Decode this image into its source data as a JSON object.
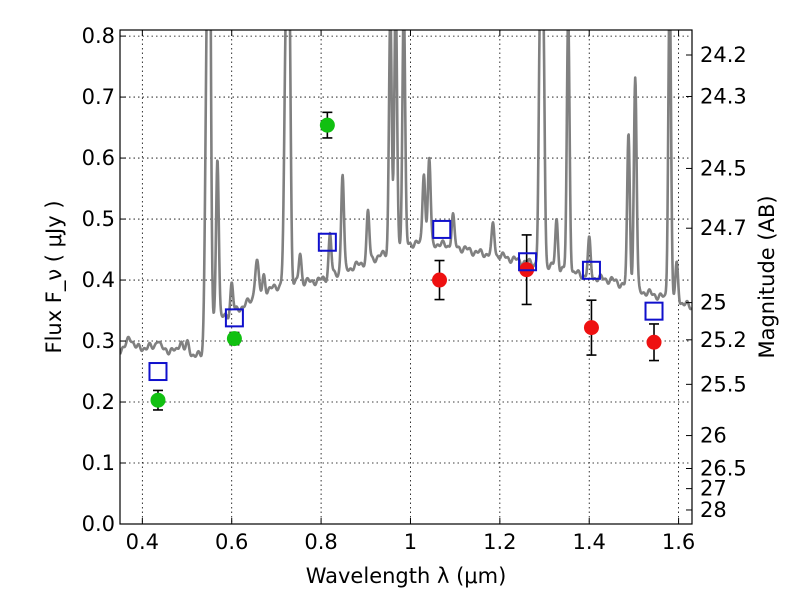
{
  "chart_data": {
    "type": "scatter",
    "title": "",
    "xlabel": "Wavelength  λ (μm)",
    "ylabel_left": "Flux  F_ν  ( μJy )",
    "ylabel_right": "Magnitude (AB)",
    "xlim": [
      0.35,
      1.63
    ],
    "ylim": [
      0.0,
      0.81
    ],
    "grid": true,
    "x_ticks": [
      0.4,
      0.6,
      0.8,
      1.0,
      1.2,
      1.4,
      1.6
    ],
    "x_tick_labels": [
      "0.4",
      "0.6",
      "0.8",
      "1",
      "1.2",
      "1.4",
      "1.6"
    ],
    "y_ticks": [
      0.0,
      0.1,
      0.2,
      0.3,
      0.4,
      0.5,
      0.6,
      0.7,
      0.8
    ],
    "y_tick_labels": [
      "0.0",
      "0.1",
      "0.2",
      "0.3",
      "0.4",
      "0.5",
      "0.6",
      "0.7",
      "0.8"
    ],
    "right_ticks": [
      {
        "label": "24.2",
        "flux": 0.769
      },
      {
        "label": "24.3",
        "flux": 0.701
      },
      {
        "label": "24.5",
        "flux": 0.583
      },
      {
        "label": "24.7",
        "flux": 0.485
      },
      {
        "label": "25",
        "flux": 0.363
      },
      {
        "label": "25.2",
        "flux": 0.302
      },
      {
        "label": "25.5",
        "flux": 0.229
      },
      {
        "label": "26",
        "flux": 0.145
      },
      {
        "label": "26.5",
        "flux": 0.091
      },
      {
        "label": "27",
        "flux": 0.058
      },
      {
        "label": "28",
        "flux": 0.023
      }
    ],
    "series": [
      {
        "name": "Photometry (green)",
        "marker": "circle",
        "color": "#11c011",
        "points": [
          {
            "x": 0.435,
            "y": 0.203,
            "err": 0.016
          },
          {
            "x": 0.606,
            "y": 0.304,
            "err": 0.01
          },
          {
            "x": 0.814,
            "y": 0.654,
            "err": 0.021
          }
        ]
      },
      {
        "name": "Photometry (red)",
        "marker": "circle",
        "color": "#ee1111",
        "points": [
          {
            "x": 1.065,
            "y": 0.4,
            "err": 0.032
          },
          {
            "x": 1.26,
            "y": 0.417,
            "err": 0.057
          },
          {
            "x": 1.405,
            "y": 0.322,
            "err": 0.045
          },
          {
            "x": 1.545,
            "y": 0.298,
            "err": 0.03
          }
        ]
      },
      {
        "name": "Model synthetic photometry",
        "marker": "open-square",
        "color": "#1010cc",
        "points": [
          {
            "x": 0.435,
            "y": 0.25
          },
          {
            "x": 0.606,
            "y": 0.338
          },
          {
            "x": 0.814,
            "y": 0.462
          },
          {
            "x": 1.07,
            "y": 0.483
          },
          {
            "x": 1.262,
            "y": 0.43
          },
          {
            "x": 1.405,
            "y": 0.416
          },
          {
            "x": 1.545,
            "y": 0.349
          }
        ]
      }
    ],
    "model_spectrum": {
      "name": "Best-fit SED",
      "color": "#808080",
      "continuum": [
        [
          0.35,
          0.285
        ],
        [
          0.38,
          0.288
        ],
        [
          0.42,
          0.29
        ],
        [
          0.46,
          0.285
        ],
        [
          0.5,
          0.28
        ],
        [
          0.535,
          0.275
        ],
        [
          0.545,
          0.265
        ],
        [
          0.552,
          0.33
        ],
        [
          0.6,
          0.345
        ],
        [
          0.65,
          0.37
        ],
        [
          0.7,
          0.39
        ],
        [
          0.75,
          0.395
        ],
        [
          0.8,
          0.4
        ],
        [
          0.85,
          0.415
        ],
        [
          0.9,
          0.43
        ],
        [
          0.95,
          0.445
        ],
        [
          1.0,
          0.46
        ],
        [
          1.05,
          0.46
        ],
        [
          1.1,
          0.455
        ],
        [
          1.15,
          0.445
        ],
        [
          1.2,
          0.44
        ],
        [
          1.25,
          0.43
        ],
        [
          1.3,
          0.425
        ],
        [
          1.35,
          0.415
        ],
        [
          1.4,
          0.405
        ],
        [
          1.45,
          0.4
        ],
        [
          1.5,
          0.385
        ],
        [
          1.55,
          0.375
        ],
        [
          1.6,
          0.365
        ],
        [
          1.63,
          0.355
        ]
      ],
      "lines": [
        [
          0.372,
          0.02,
          0.006
        ],
        [
          0.434,
          0.015,
          0.004
        ],
        [
          0.486,
          0.02,
          0.004
        ],
        [
          0.501,
          0.015,
          0.004
        ],
        [
          0.545,
          0.55,
          0.004
        ],
        [
          0.5505,
          0.62,
          0.003
        ],
        [
          0.568,
          0.27,
          0.003
        ],
        [
          0.6,
          0.05,
          0.003
        ],
        [
          0.656,
          0.06,
          0.004
        ],
        [
          0.672,
          0.03,
          0.003
        ],
        [
          0.722,
          0.45,
          0.004
        ],
        [
          0.729,
          0.42,
          0.003
        ],
        [
          0.753,
          0.05,
          0.003
        ],
        [
          0.82,
          0.07,
          0.003
        ],
        [
          0.848,
          0.16,
          0.003
        ],
        [
          0.905,
          0.08,
          0.003
        ],
        [
          0.955,
          0.4,
          0.003
        ],
        [
          0.967,
          0.42,
          0.003
        ],
        [
          0.985,
          0.4,
          0.003
        ],
        [
          1.03,
          0.12,
          0.003
        ],
        [
          1.042,
          0.14,
          0.003
        ],
        [
          1.095,
          0.05,
          0.003
        ],
        [
          1.185,
          0.05,
          0.003
        ],
        [
          1.29,
          0.4,
          0.003
        ],
        [
          1.297,
          0.42,
          0.003
        ],
        [
          1.327,
          0.08,
          0.003
        ],
        [
          1.353,
          0.42,
          0.003
        ],
        [
          1.4,
          0.06,
          0.003
        ],
        [
          1.488,
          0.25,
          0.003
        ],
        [
          1.503,
          0.35,
          0.003
        ],
        [
          1.58,
          0.52,
          0.003
        ],
        [
          1.596,
          0.06,
          0.003
        ]
      ]
    }
  }
}
